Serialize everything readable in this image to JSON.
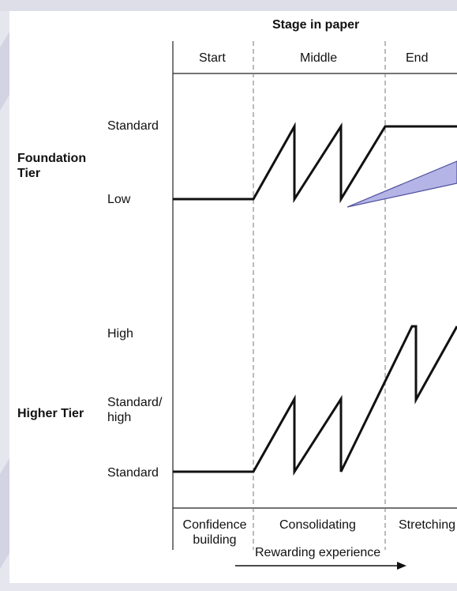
{
  "header": {
    "title": "Stage in paper"
  },
  "stages": [
    {
      "label": "Start"
    },
    {
      "label": "Middle"
    },
    {
      "label": "End"
    }
  ],
  "tiers": {
    "foundation": {
      "name": "Foundation Tier",
      "levels": [
        "Standard",
        "Low"
      ]
    },
    "higher": {
      "name": "Higher Tier",
      "levels": [
        "High",
        "Standard/ high",
        "Standard"
      ]
    }
  },
  "footer": {
    "descriptors": [
      "Confidence building",
      "Consolidating",
      "Stretching"
    ],
    "arrow_label": "Rewarding experience"
  },
  "colors": {
    "line": "#111111",
    "callout_fill": "#b4b4e6",
    "callout_stroke": "#5050a0",
    "background_deco": "#dcdce8"
  }
}
